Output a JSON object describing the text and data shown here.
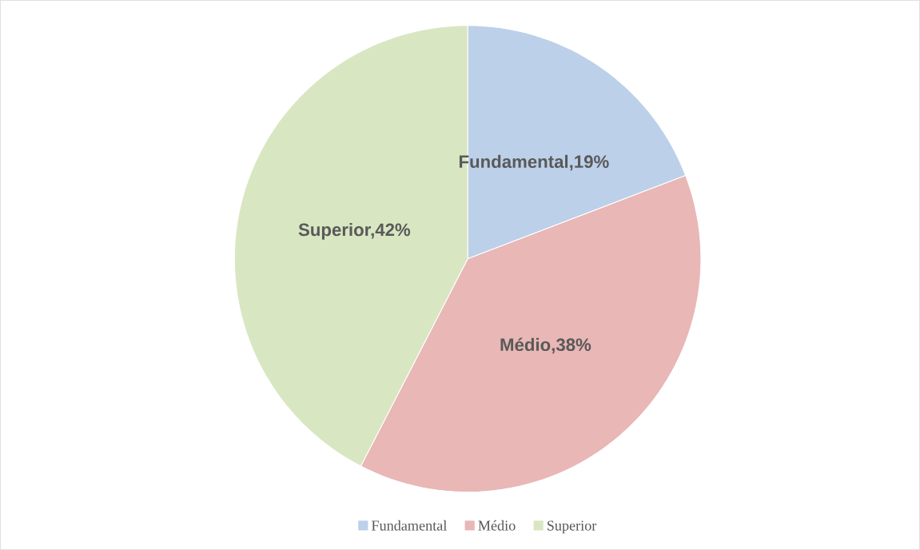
{
  "chart_data": {
    "type": "pie",
    "categories": [
      "Fundamental",
      "Médio",
      "Superior"
    ],
    "values": [
      19,
      38,
      42
    ],
    "value_labels": [
      "Fundamental,19%",
      "Médio,38%",
      "Superior,42%"
    ],
    "colors": [
      "#bdd0e9",
      "#e8b7b6",
      "#d9e6c2"
    ],
    "legend": "bottom"
  }
}
